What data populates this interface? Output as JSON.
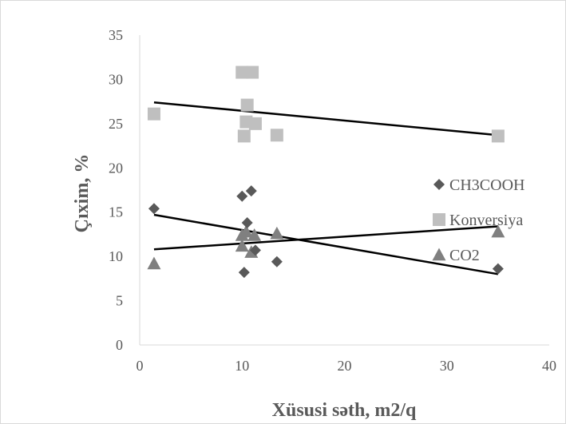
{
  "chart_data": {
    "type": "scatter",
    "title": "",
    "xlabel": "Xüsusi səth, m2/q",
    "ylabel": "Çıxim, %",
    "xlim": [
      0,
      40
    ],
    "ylim": [
      0,
      35
    ],
    "xticks": [
      0,
      10,
      20,
      30,
      40
    ],
    "yticks": [
      0,
      5,
      10,
      15,
      20,
      25,
      30,
      35
    ],
    "grid": false,
    "legend_position": "right",
    "series": [
      {
        "name": "CH3COOH",
        "marker": "diamond",
        "color": "#595959",
        "points": [
          [
            1.4,
            15.4
          ],
          [
            10.0,
            16.8
          ],
          [
            10.5,
            13.8
          ],
          [
            10.9,
            17.4
          ],
          [
            10.2,
            8.2
          ],
          [
            11.3,
            10.7
          ],
          [
            13.4,
            9.4
          ],
          [
            35.0,
            8.6
          ]
        ],
        "trendline": [
          [
            1.4,
            14.7
          ],
          [
            35.0,
            8.0
          ]
        ]
      },
      {
        "name": "Konversiya",
        "marker": "square",
        "color": "#bfbfbf",
        "points": [
          [
            1.4,
            26.1
          ],
          [
            10.0,
            30.8
          ],
          [
            11.0,
            30.8
          ],
          [
            10.5,
            27.1
          ],
          [
            10.4,
            25.2
          ],
          [
            11.3,
            25.0
          ],
          [
            10.2,
            23.6
          ],
          [
            13.4,
            23.7
          ],
          [
            35.0,
            23.6
          ]
        ],
        "trendline": [
          [
            1.4,
            27.4
          ],
          [
            35.0,
            23.7
          ]
        ]
      },
      {
        "name": "CO2",
        "marker": "triangle",
        "color": "#808080",
        "points": [
          [
            1.4,
            9.2
          ],
          [
            10.0,
            12.4
          ],
          [
            10.4,
            12.8
          ],
          [
            11.2,
            12.4
          ],
          [
            10.0,
            11.2
          ],
          [
            10.9,
            10.5
          ],
          [
            13.4,
            12.6
          ],
          [
            35.0,
            12.8
          ]
        ],
        "trendline": [
          [
            1.4,
            10.8
          ],
          [
            35.0,
            13.4
          ]
        ]
      }
    ]
  }
}
